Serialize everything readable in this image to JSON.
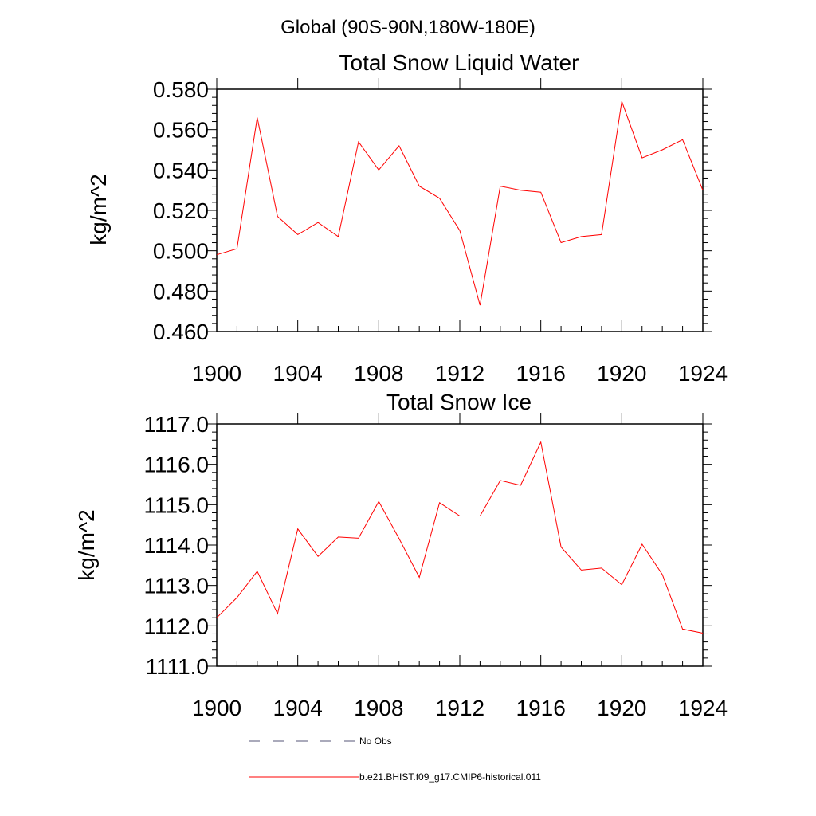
{
  "figure": {
    "suptitle": "Global (90S-90N,180W-180E)"
  },
  "chart_data": [
    {
      "type": "line",
      "title": "Total Snow Liquid Water",
      "xlabel": "",
      "ylabel": "kg/m^2",
      "xlim": [
        1900,
        1924
      ],
      "ylim": [
        0.46,
        0.58
      ],
      "x_ticks": [
        "1900",
        "1904",
        "1908",
        "1912",
        "1916",
        "1920",
        "1924"
      ],
      "y_ticks": [
        "0.460",
        "0.480",
        "0.500",
        "0.520",
        "0.540",
        "0.560",
        "0.580"
      ],
      "series": [
        {
          "name": "b.e21.BHIST.f09_g17.CMIP6-historical.011",
          "color": "#ff0000",
          "x": [
            1900,
            1901,
            1902,
            1903,
            1904,
            1905,
            1906,
            1907,
            1908,
            1909,
            1910,
            1911,
            1912,
            1913,
            1914,
            1915,
            1916,
            1917,
            1918,
            1919,
            1920,
            1921,
            1922,
            1923,
            1924
          ],
          "y": [
            0.498,
            0.501,
            0.566,
            0.517,
            0.508,
            0.514,
            0.507,
            0.554,
            0.54,
            0.552,
            0.532,
            0.526,
            0.51,
            0.473,
            0.532,
            0.53,
            0.529,
            0.504,
            0.507,
            0.508,
            0.574,
            0.546,
            0.55,
            0.555,
            0.53
          ]
        }
      ]
    },
    {
      "type": "line",
      "title": "Total Snow Ice",
      "xlabel": "",
      "ylabel": "kg/m^2",
      "xlim": [
        1900,
        1924
      ],
      "ylim": [
        1111.0,
        1117.0
      ],
      "x_ticks": [
        "1900",
        "1904",
        "1908",
        "1912",
        "1916",
        "1920",
        "1924"
      ],
      "y_ticks": [
        "1111.0",
        "1112.0",
        "1113.0",
        "1114.0",
        "1115.0",
        "1116.0",
        "1117.0"
      ],
      "series": [
        {
          "name": "b.e21.BHIST.f09_g17.CMIP6-historical.011",
          "color": "#ff0000",
          "x": [
            1900,
            1901,
            1902,
            1903,
            1904,
            1905,
            1906,
            1907,
            1908,
            1909,
            1910,
            1911,
            1912,
            1913,
            1914,
            1915,
            1916,
            1917,
            1918,
            1919,
            1920,
            1921,
            1922,
            1923,
            1924
          ],
          "y": [
            1112.2,
            1112.7,
            1113.35,
            1112.3,
            1114.4,
            1113.72,
            1114.2,
            1114.17,
            1115.08,
            1114.16,
            1113.2,
            1115.05,
            1114.72,
            1114.72,
            1115.6,
            1115.48,
            1116.55,
            1113.95,
            1113.38,
            1113.43,
            1113.02,
            1114.02,
            1113.27,
            1111.92,
            1111.82
          ]
        }
      ]
    }
  ],
  "legend": {
    "items": [
      {
        "label": "No Obs",
        "color": "#555577",
        "style": "dashed"
      },
      {
        "label": "b.e21.BHIST.f09_g17.CMIP6-historical.011",
        "color": "#ff0000",
        "style": "solid"
      }
    ]
  }
}
